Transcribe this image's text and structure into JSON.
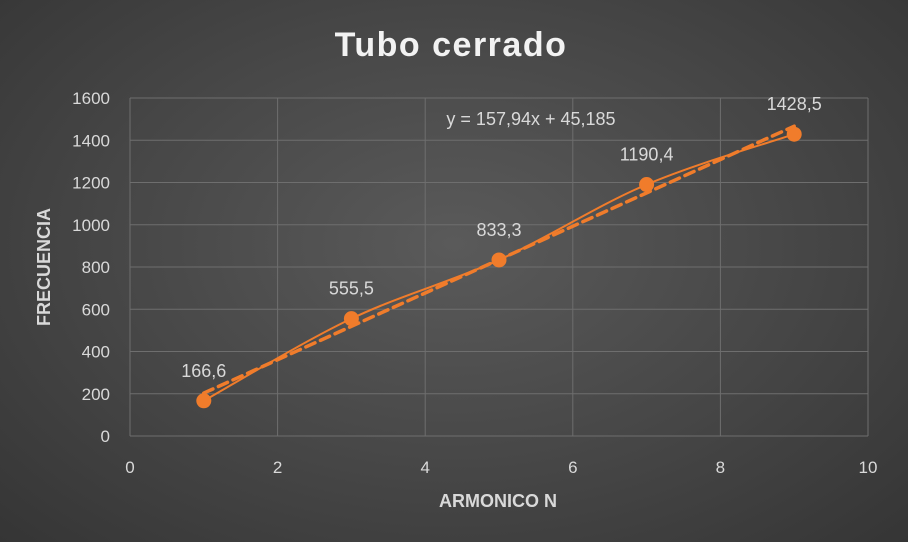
{
  "chart_data": {
    "type": "scatter",
    "title": "Tubo cerrado",
    "xlabel": "ARMONICO N",
    "ylabel": "FRECUENCIA",
    "xlim": [
      0,
      10
    ],
    "ylim": [
      0,
      1600
    ],
    "xticks": [
      0,
      2,
      4,
      6,
      8,
      10
    ],
    "yticks": [
      0,
      200,
      400,
      600,
      800,
      1000,
      1200,
      1400,
      1600
    ],
    "grid": true,
    "series": [
      {
        "x": [
          1,
          3,
          5,
          7,
          9
        ],
        "y": [
          166.6,
          555.5,
          833.3,
          1190.4,
          1428.5
        ],
        "labels": [
          "166,6",
          "555,5",
          "833,3",
          "1190,4",
          "1428,5"
        ],
        "color": "#f07c2b",
        "line": "smooth",
        "marker": "circle"
      }
    ],
    "trendline": {
      "type": "linear",
      "slope": 157.94,
      "intercept": 45.185,
      "x_range": [
        1,
        9
      ],
      "equation_label": "y = 157,94x + 45,185",
      "color": "#f07c2b",
      "style": "dashed"
    }
  }
}
